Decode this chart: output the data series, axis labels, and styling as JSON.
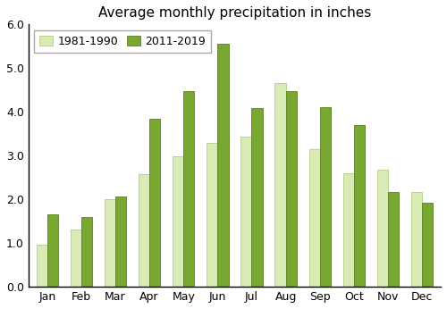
{
  "title": "Average monthly precipitation in inches",
  "months": [
    "Jan",
    "Feb",
    "Mar",
    "Apr",
    "May",
    "Jun",
    "Jul",
    "Aug",
    "Sep",
    "Oct",
    "Nov",
    "Dec"
  ],
  "series1_label": "1981-1990",
  "series2_label": "2011-2019",
  "series1_values": [
    0.97,
    1.32,
    2.01,
    2.57,
    2.98,
    3.3,
    3.43,
    4.65,
    3.14,
    2.6,
    2.67,
    2.17
  ],
  "series2_values": [
    1.65,
    1.6,
    2.06,
    3.84,
    4.48,
    5.55,
    4.08,
    4.48,
    4.1,
    3.7,
    2.17,
    1.93
  ],
  "series1_color": "#d8ebb5",
  "series2_color": "#78a832",
  "series1_edge": "#b5cc80",
  "series2_edge": "#5a8020",
  "ylim": [
    0.0,
    6.0
  ],
  "yticks": [
    0.0,
    1.0,
    2.0,
    3.0,
    4.0,
    5.0,
    6.0
  ],
  "bar_width": 0.32,
  "background_color": "#ffffff",
  "title_fontsize": 11,
  "legend_fontsize": 9,
  "tick_fontsize": 9
}
